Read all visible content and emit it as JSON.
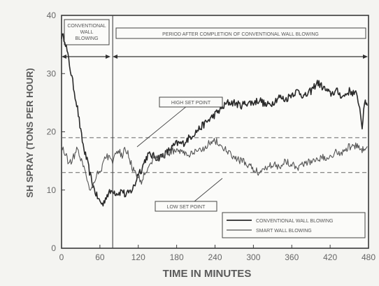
{
  "chart_data": {
    "type": "line",
    "xlabel": "TIME IN MINUTES",
    "ylabel": "SH SPRAY (TONS PER HOUR)",
    "xlim": [
      0,
      480
    ],
    "ylim": [
      0,
      40
    ],
    "x_ticks": [
      "0",
      "60",
      "120",
      "180",
      "240",
      "300",
      "360",
      "420",
      "480"
    ],
    "y_ticks": [
      "0",
      "10",
      "20",
      "30",
      "40"
    ],
    "x_tick_values": [
      0,
      60,
      120,
      180,
      240,
      300,
      360,
      420,
      480
    ],
    "y_tick_values": [
      0,
      10,
      20,
      30,
      40
    ],
    "grid": false,
    "legend_position": "bottom-right",
    "series": [
      {
        "name": "CONVENTIONAL WALL BLOWING",
        "x": [
          0,
          5,
          10,
          15,
          20,
          25,
          30,
          35,
          40,
          45,
          50,
          55,
          60,
          65,
          70,
          75,
          80,
          85,
          90,
          95,
          100,
          105,
          110,
          115,
          120,
          125,
          130,
          135,
          140,
          150,
          160,
          170,
          180,
          190,
          200,
          210,
          220,
          230,
          240,
          250,
          260,
          270,
          280,
          290,
          300,
          310,
          320,
          330,
          340,
          350,
          360,
          370,
          380,
          390,
          400,
          410,
          420,
          430,
          440,
          450,
          460,
          465,
          470,
          475,
          478
        ],
        "values": [
          36.5,
          36,
          33,
          30,
          27,
          24,
          20,
          17,
          15,
          12.5,
          10.5,
          9,
          8,
          7.5,
          9,
          9.5,
          10,
          9.5,
          9.5,
          10,
          9,
          9.5,
          10,
          11,
          13,
          13.5,
          15,
          16,
          16,
          15.5,
          16,
          17,
          18,
          18,
          19,
          20,
          21,
          22,
          23,
          24,
          25,
          25,
          24.5,
          25,
          25,
          25.5,
          24.5,
          25,
          26,
          25.5,
          26.5,
          27,
          26,
          27,
          28.5,
          27.5,
          26.5,
          27,
          26,
          27,
          26.5,
          25,
          21,
          25.5,
          24.5
        ]
      },
      {
        "name": "SMART WALL BLOWING",
        "x": [
          0,
          5,
          10,
          15,
          20,
          25,
          30,
          35,
          40,
          45,
          50,
          55,
          60,
          65,
          70,
          75,
          80,
          85,
          90,
          95,
          100,
          105,
          110,
          115,
          120,
          125,
          130,
          135,
          140,
          150,
          160,
          170,
          180,
          190,
          200,
          210,
          220,
          230,
          240,
          250,
          260,
          270,
          280,
          290,
          300,
          310,
          320,
          330,
          340,
          350,
          360,
          370,
          380,
          390,
          400,
          410,
          420,
          430,
          440,
          450,
          460,
          470,
          478
        ],
        "values": [
          17.5,
          16.5,
          15,
          15,
          16,
          17,
          15.5,
          14,
          12,
          10,
          11,
          13,
          13,
          14.5,
          16,
          15.5,
          15,
          16,
          16.5,
          16,
          17,
          16,
          14,
          13,
          12,
          11.5,
          13,
          14,
          15,
          15.5,
          16,
          16.5,
          17,
          16.5,
          16,
          16.5,
          17,
          18,
          18.5,
          17.5,
          16.5,
          15.5,
          15,
          14.5,
          13.5,
          13,
          14,
          14.5,
          14,
          15,
          14.5,
          14,
          14.5,
          15,
          15.5,
          15.5,
          16,
          16.5,
          16.5,
          17.5,
          17.5,
          17,
          17.5
        ]
      }
    ],
    "reference_lines": [
      {
        "label": "HIGH SET POINT",
        "y": 19
      },
      {
        "label": "LOW SET POINT",
        "y": 13
      }
    ],
    "separator_x": 80,
    "annotations": {
      "conventional_period": "CONVENTIONAL WALL BLOWING",
      "period_after": "PERIOD AFTER COMPLETION OF CONVENTIONAL WALL BLOWING"
    }
  }
}
